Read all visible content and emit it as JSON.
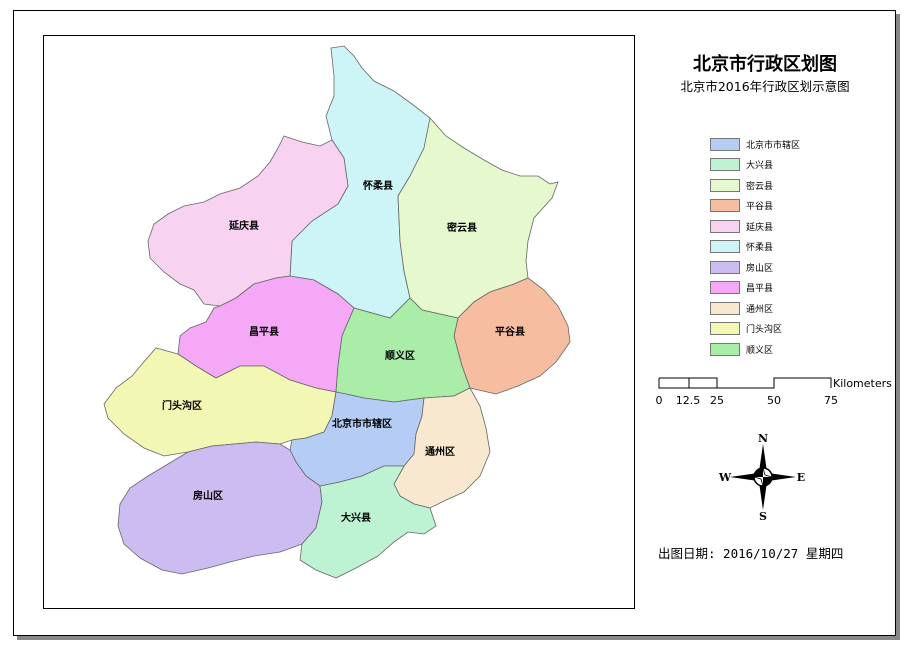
{
  "title": "北京市行政区划图",
  "subtitle": "北京市2016年行政区划示意图",
  "regions": [
    {
      "id": "huairou",
      "name": "怀柔县",
      "color": "#cdf4f7"
    },
    {
      "id": "yanqing",
      "name": "延庆县",
      "color": "#f8d3f1"
    },
    {
      "id": "miyun",
      "name": "密云县",
      "color": "#e6f8cd"
    },
    {
      "id": "pinggu",
      "name": "平谷县",
      "color": "#f7bda0"
    },
    {
      "id": "changping",
      "name": "昌平县",
      "color": "#f4a8f5"
    },
    {
      "id": "shunyi",
      "name": "顺义区",
      "color": "#a9eda8"
    },
    {
      "id": "mentougou",
      "name": "门头沟区",
      "color": "#f2f7b3"
    },
    {
      "id": "city",
      "name": "北京市市辖区",
      "color": "#b5cdf5"
    },
    {
      "id": "tongzhou",
      "name": "通州区",
      "color": "#f7e8cf"
    },
    {
      "id": "fangshan",
      "name": "房山区",
      "color": "#cdbcf1"
    },
    {
      "id": "daxing",
      "name": "大兴县",
      "color": "#bdf2d3"
    }
  ],
  "legend": [
    {
      "label": "北京市市辖区",
      "color": "#b5cdf5"
    },
    {
      "label": "大兴县",
      "color": "#bdf2d3"
    },
    {
      "label": "密云县",
      "color": "#e6f8cd"
    },
    {
      "label": "平谷县",
      "color": "#f7bda0"
    },
    {
      "label": "延庆县",
      "color": "#f8d3f1"
    },
    {
      "label": "怀柔县",
      "color": "#cdf4f7"
    },
    {
      "label": "房山区",
      "color": "#cdbcf1"
    },
    {
      "label": "昌平县",
      "color": "#f4a8f5"
    },
    {
      "label": "通州区",
      "color": "#f7e8cf"
    },
    {
      "label": "门头沟区",
      "color": "#f2f7b3"
    },
    {
      "label": "顺义区",
      "color": "#a9eda8"
    }
  ],
  "scale": {
    "unit": "Kilometers",
    "ticks": [
      "0",
      "12.5",
      "25",
      "50",
      "75"
    ]
  },
  "compass": {
    "n": "N",
    "s": "S",
    "e": "E",
    "w": "W"
  },
  "print_date": "出图日期: 2016/10/27 星期四"
}
